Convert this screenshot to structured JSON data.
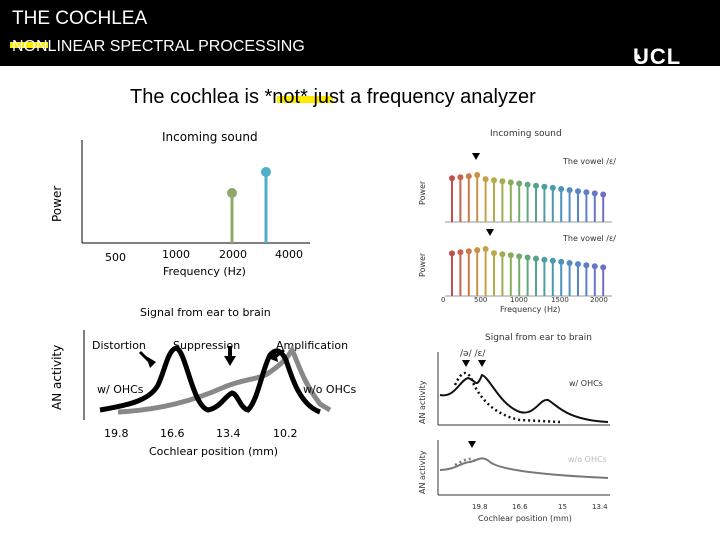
{
  "header": {
    "title": "THE COCHLEA",
    "subtitle": "NONLINEAR SPECTRAL PROCESSING",
    "logo_text": "UCL",
    "header_color": "#000000",
    "highlight_color": "#ffeb00"
  },
  "headline": {
    "text": "The cochlea is *not* just a frequency analyzer"
  },
  "incoming_plot": {
    "title": "Incoming sound",
    "ylabel": "Power",
    "xlabel": "Frequency (Hz)",
    "tick_labels": [
      "500",
      "1000",
      "2000",
      "4000"
    ],
    "stems": [
      {
        "label": "2000",
        "color": "#8fa86a"
      },
      {
        "label": "4000",
        "color": "#4faec8"
      }
    ]
  },
  "output_plot": {
    "title": "Signal from ear to brain",
    "ylabel": "AN activity",
    "xlabel": "Cochlear position (mm)",
    "tick_labels": [
      "19.8",
      "16.6",
      "13.4",
      "10.2"
    ],
    "annotations": [
      "Distortion",
      "Suppression",
      "Amplification"
    ],
    "series": [
      {
        "name": "w/ OHCs",
        "color": "#000000"
      },
      {
        "name": "w/o OHCs",
        "color": "#888888"
      }
    ]
  },
  "ref_figure": {
    "incoming_title": "Incoming sound",
    "vowel_a": "The vowel /ɛ/",
    "vowel_b": "The vowel /ɛ/",
    "power_label_a": "Power",
    "power_label_b": "Power",
    "freq_ticks": [
      "0",
      "500",
      "1000",
      "1500",
      "2000"
    ],
    "freq_label": "Frequency (Hz)",
    "output_title": "Signal from ear to brain",
    "phoneme_labels": "/ə/ /ɛ/",
    "with_ohc": "w/ OHCs",
    "without_ohc": "w/o OHCs",
    "an_label_a": "AN activity",
    "an_label_b": "AN activity",
    "pos_ticks": [
      "19.8",
      "16.6",
      "15",
      "13.4"
    ],
    "pos_label": "Cochlear position (mm)"
  }
}
